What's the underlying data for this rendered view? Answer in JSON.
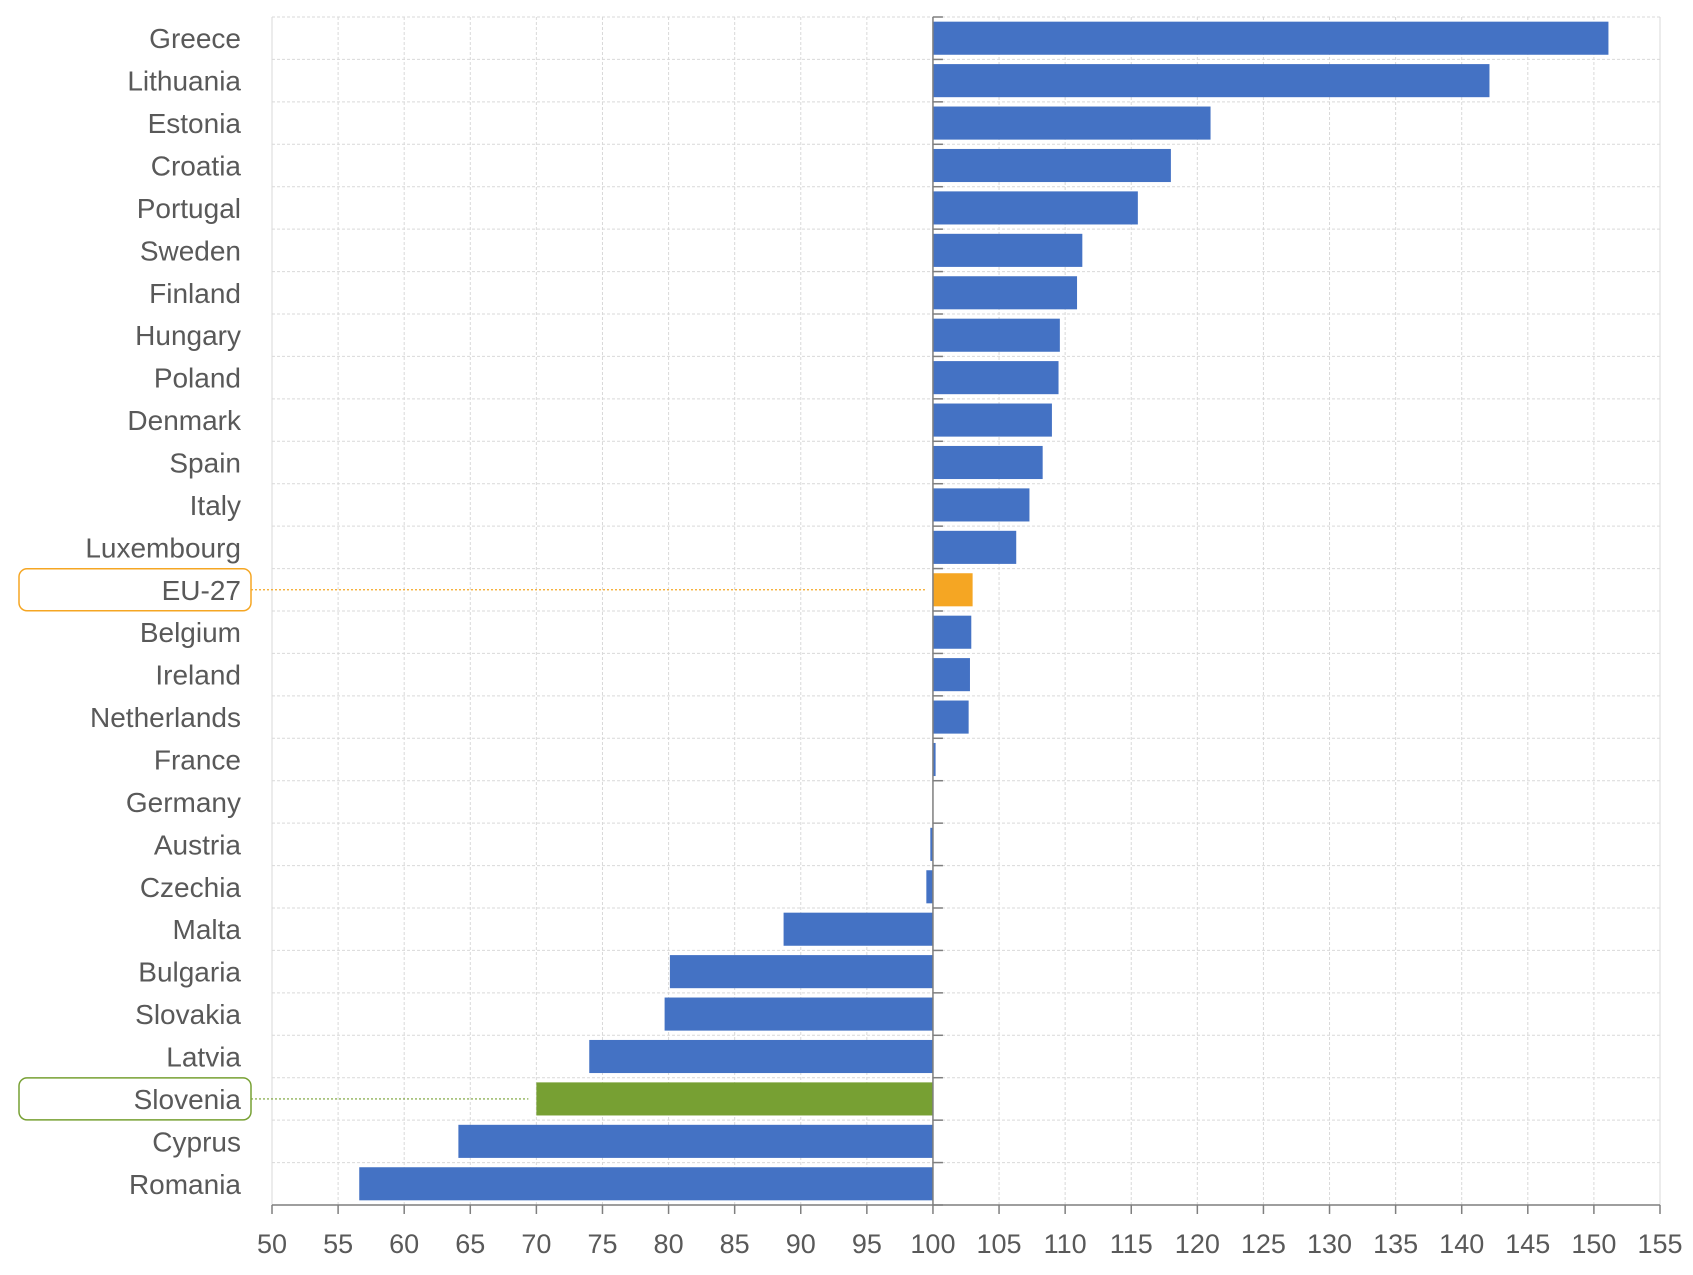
{
  "chart_data": {
    "type": "bar",
    "orientation": "horizontal",
    "baseline": 100,
    "categories": [
      "Greece",
      "Lithuania",
      "Estonia",
      "Croatia",
      "Portugal",
      "Sweden",
      "Finland",
      "Hungary",
      "Poland",
      "Denmark",
      "Spain",
      "Italy",
      "Luxembourg",
      "EU-27",
      "Belgium",
      "Ireland",
      "Netherlands",
      "France",
      "Germany",
      "Austria",
      "Czechia",
      "Malta",
      "Bulgaria",
      "Slovakia",
      "Latvia",
      "Slovenia",
      "Cyprus",
      "Romania"
    ],
    "values": [
      151.1,
      142.1,
      121.0,
      118.0,
      115.5,
      111.3,
      110.9,
      109.6,
      109.5,
      109.0,
      108.3,
      107.3,
      106.3,
      103.0,
      102.9,
      102.8,
      102.7,
      100.2,
      100.0,
      99.8,
      99.5,
      88.7,
      80.1,
      79.7,
      74.0,
      70.0,
      64.1,
      56.6
    ],
    "xlim": [
      50,
      155
    ],
    "xticks": [
      50,
      55,
      60,
      65,
      70,
      75,
      80,
      85,
      90,
      95,
      100,
      105,
      110,
      115,
      120,
      125,
      130,
      135,
      140,
      145,
      150,
      155
    ],
    "highlight": {
      "EU-27": "#F5A623",
      "Slovenia": "#77A033"
    },
    "bar_color": "#4472C4",
    "grid": true,
    "title": "",
    "xlabel": "",
    "ylabel": ""
  }
}
